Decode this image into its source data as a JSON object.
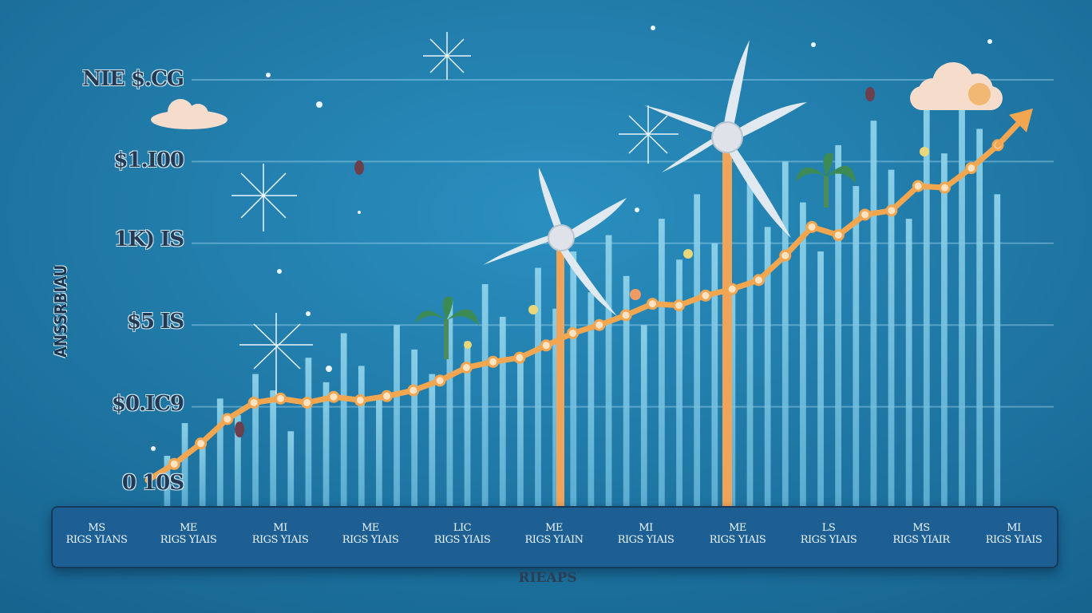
{
  "chart_data": {
    "type": "line",
    "x_tick_labels": [
      {
        "line1": "MS",
        "line2": "RIGS YIANS"
      },
      {
        "line1": "ME",
        "line2": "RIGS YIAIS"
      },
      {
        "line1": "MI",
        "line2": "RIGS YIAIS"
      },
      {
        "line1": "ME",
        "line2": "RIGS YIAIS"
      },
      {
        "line1": "LIC",
        "line2": "RIGS YIAIS"
      },
      {
        "line1": "ME",
        "line2": "RIGS YIAIN"
      },
      {
        "line1": "MI",
        "line2": "RIGS YIAIS"
      },
      {
        "line1": "ME",
        "line2": "RIGS YIAIS"
      },
      {
        "line1": "LS",
        "line2": "RIGS YIAIS"
      },
      {
        "line1": "MS",
        "line2": "RIGS YIAIR"
      },
      {
        "line1": "MI",
        "line2": "RIGS YIAIS"
      }
    ],
    "y_tick_labels": [
      "0 10S",
      "$0.IC9",
      "$5 IS",
      "1K) IS",
      "$1.I00",
      "NIE $.CG"
    ],
    "ylabel": "ANSSRBIAU",
    "xlabel": "RIEAPS",
    "ylim": [
      0,
      5
    ],
    "series": [
      {
        "color": "#f3a650",
        "values": [
          0.1,
          0.3,
          0.55,
          0.85,
          1.05,
          1.1,
          1.05,
          1.12,
          1.08,
          1.13,
          1.2,
          1.32,
          1.48,
          1.55,
          1.6,
          1.75,
          1.9,
          2.0,
          2.12,
          2.26,
          2.24,
          2.36,
          2.44,
          2.55,
          2.85,
          3.2,
          3.1,
          3.35,
          3.4,
          3.7,
          3.68,
          3.92,
          4.2
        ]
      }
    ],
    "background_bars": [
      0.4,
      0.8,
      0.6,
      1.1,
      0.9,
      1.4,
      1.2,
      0.7,
      1.6,
      1.3,
      1.9,
      1.5,
      1.1,
      2.0,
      1.7,
      1.4,
      2.3,
      1.8,
      2.5,
      2.1,
      1.6,
      2.7,
      2.2,
      2.9,
      2.4,
      3.1,
      2.6,
      2.0,
      3.3,
      2.8,
      3.6,
      3.0,
      2.5,
      3.8,
      3.2,
      4.0,
      3.5,
      2.9,
      4.2,
      3.7,
      4.5,
      3.9,
      3.3,
      4.7,
      4.1,
      4.9,
      4.4,
      3.6
    ],
    "grid": true,
    "legend": "none"
  }
}
